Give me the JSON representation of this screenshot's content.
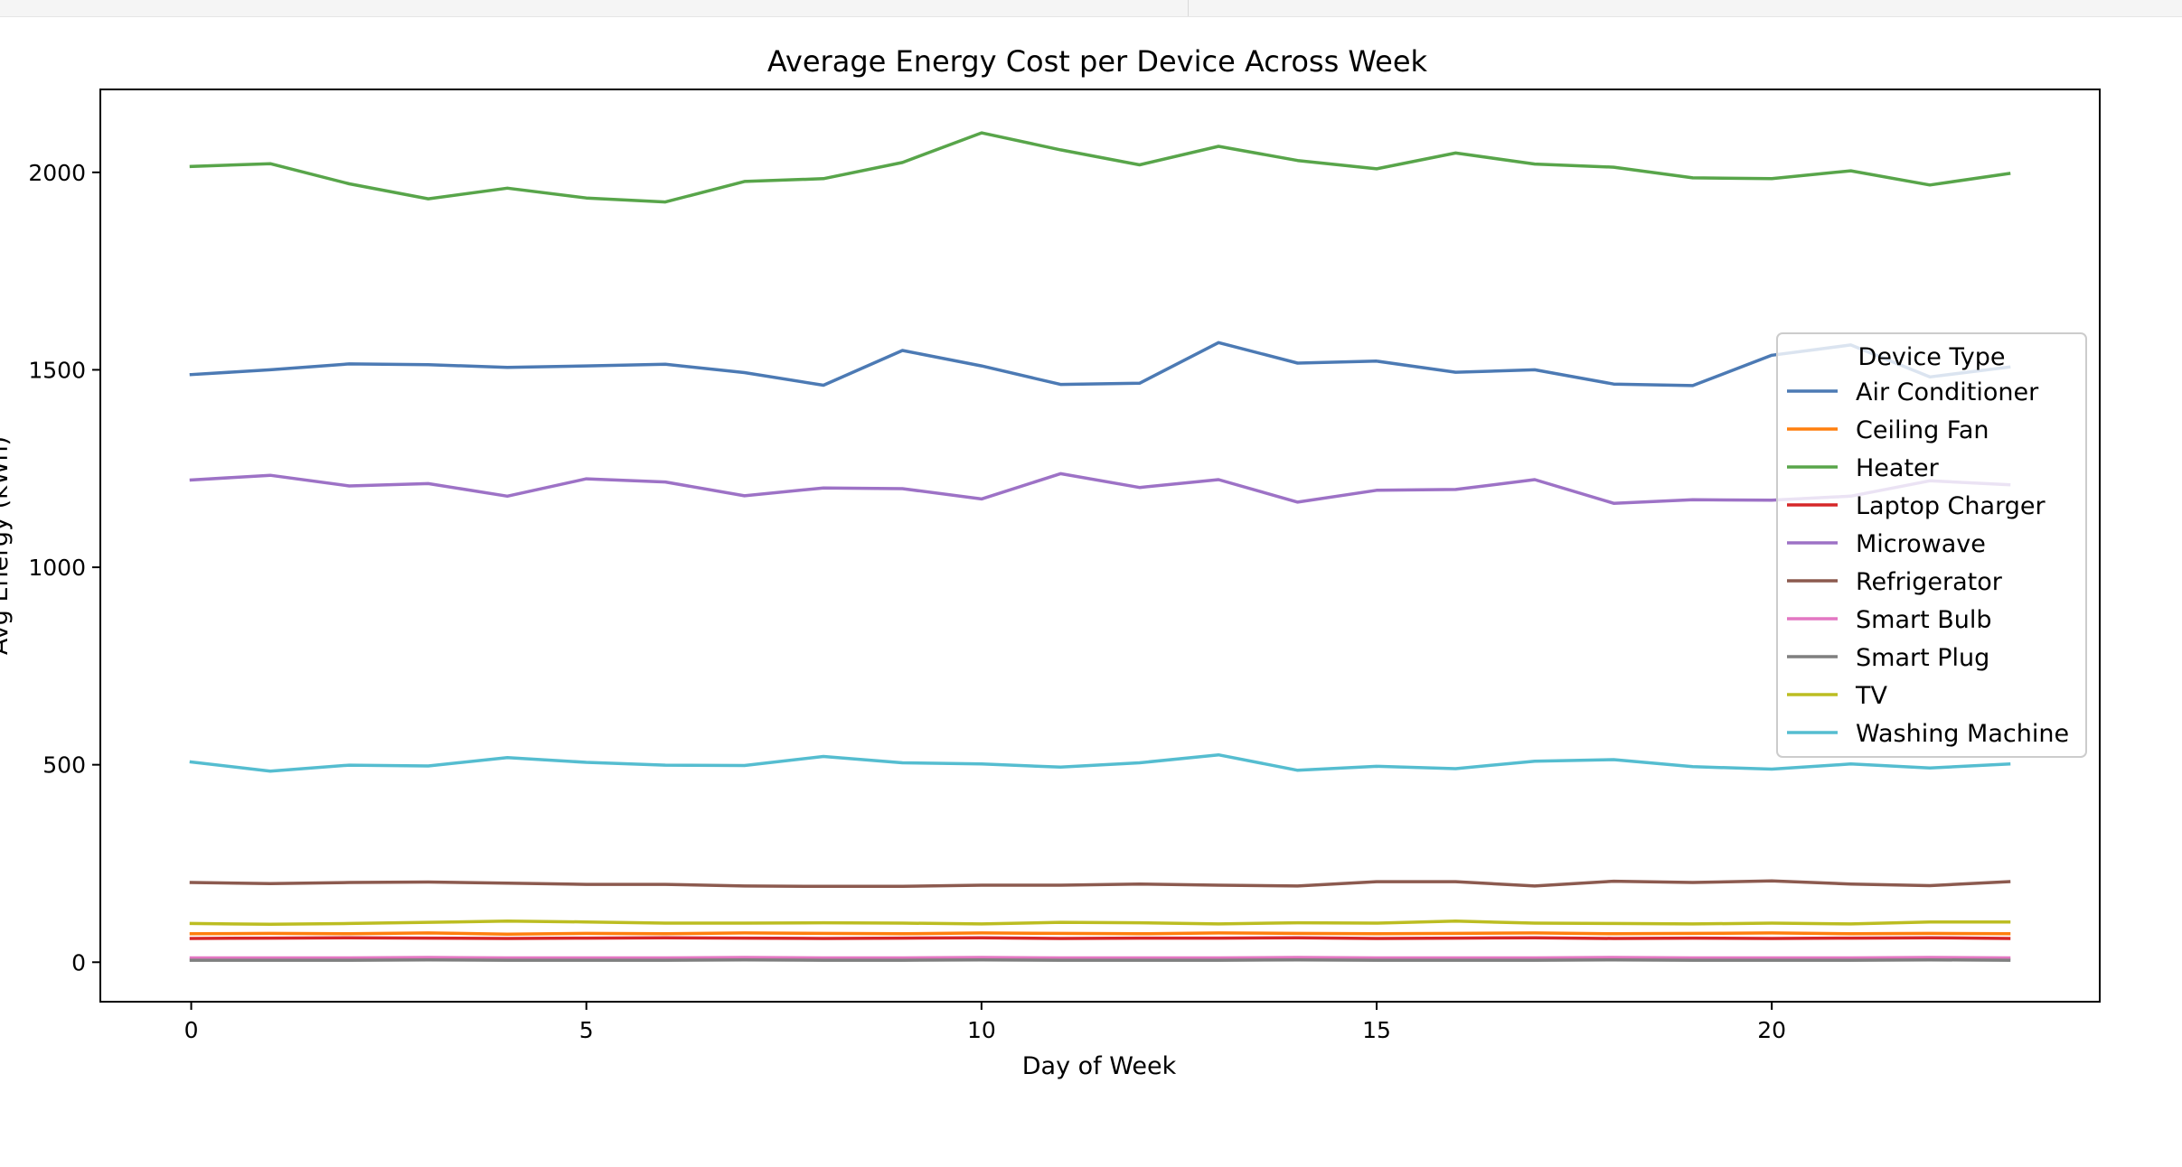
{
  "chart_data": {
    "type": "line",
    "title": "Average Energy Cost per Device Across Week",
    "xlabel": "Day of Week",
    "ylabel": "Avg Energy (kWh)",
    "xlim": [
      -1.15,
      24.15
    ],
    "ylim": [
      -100,
      2210
    ],
    "xticks": [
      0,
      5,
      10,
      15,
      20
    ],
    "yticks": [
      0,
      500,
      1000,
      1500,
      2000
    ],
    "grid": false,
    "legend": {
      "title": "Device Type",
      "position": "right"
    },
    "x": [
      0,
      1,
      2,
      3,
      4,
      5,
      6,
      7,
      8,
      9,
      10,
      11,
      12,
      13,
      14,
      15,
      16,
      17,
      18,
      19,
      20,
      21,
      22,
      23
    ],
    "series": [
      {
        "name": "Air Conditioner",
        "color": "#4c7ab4",
        "values": [
          1488,
          1500,
          1515,
          1513,
          1506,
          1510,
          1514,
          1493,
          1461,
          1549,
          1510,
          1463,
          1466,
          1569,
          1517,
          1522,
          1494,
          1500,
          1464,
          1460,
          1537,
          1563,
          1482,
          1507
        ]
      },
      {
        "name": "Ceiling Fan",
        "color": "#ff7f0e",
        "values": [
          72,
          73,
          72,
          74,
          71,
          73,
          72,
          74,
          73,
          72,
          74,
          73,
          72,
          74,
          73,
          72,
          73,
          74,
          72,
          73,
          74,
          72,
          73,
          72
        ]
      },
      {
        "name": "Heater",
        "color": "#58a54a",
        "values": [
          2015,
          2022,
          1971,
          1933,
          1960,
          1935,
          1925,
          1977,
          1984,
          2025,
          2100,
          2057,
          2019,
          2066,
          2030,
          2009,
          2049,
          2021,
          2013,
          1986,
          1984,
          2004,
          1968,
          1997
        ]
      },
      {
        "name": "Laptop Charger",
        "color": "#d62728",
        "values": [
          60,
          61,
          62,
          61,
          60,
          61,
          62,
          61,
          60,
          61,
          62,
          60,
          61,
          61,
          62,
          60,
          61,
          62,
          60,
          61,
          60,
          61,
          62,
          60
        ]
      },
      {
        "name": "Microwave",
        "color": "#9d72c6",
        "values": [
          1221,
          1233,
          1206,
          1212,
          1180,
          1224,
          1216,
          1181,
          1201,
          1199,
          1173,
          1237,
          1202,
          1222,
          1165,
          1195,
          1197,
          1222,
          1162,
          1171,
          1170,
          1180,
          1219,
          1209
        ]
      },
      {
        "name": "Refrigerator",
        "color": "#8c5a4f",
        "values": [
          202,
          199,
          202,
          203,
          200,
          197,
          197,
          193,
          192,
          192,
          195,
          195,
          198,
          195,
          193,
          204,
          204,
          193,
          205,
          202,
          206,
          198,
          194,
          204
        ]
      },
      {
        "name": "Smart Bulb",
        "color": "#e377c2",
        "values": [
          11,
          11,
          11,
          12,
          11,
          11,
          11,
          12,
          11,
          11,
          12,
          11,
          11,
          11,
          12,
          11,
          11,
          11,
          12,
          11,
          11,
          11,
          12,
          11
        ]
      },
      {
        "name": "Smart Plug",
        "color": "#7f7f7f",
        "values": [
          5,
          5,
          5,
          6,
          5,
          5,
          5,
          6,
          5,
          5,
          6,
          5,
          5,
          5,
          6,
          5,
          5,
          5,
          6,
          5,
          5,
          5,
          6,
          5
        ]
      },
      {
        "name": "TV",
        "color": "#bcbd22",
        "values": [
          98,
          96,
          98,
          101,
          104,
          102,
          99,
          99,
          100,
          99,
          97,
          101,
          100,
          97,
          100,
          99,
          104,
          99,
          98,
          97,
          99,
          97,
          102,
          102
        ]
      },
      {
        "name": "Washing Machine",
        "color": "#55bdd0",
        "values": [
          507,
          484,
          499,
          497,
          518,
          506,
          499,
          498,
          521,
          505,
          502,
          494,
          505,
          525,
          486,
          496,
          490,
          509,
          513,
          495,
          489,
          502,
          492,
          502
        ]
      }
    ]
  }
}
